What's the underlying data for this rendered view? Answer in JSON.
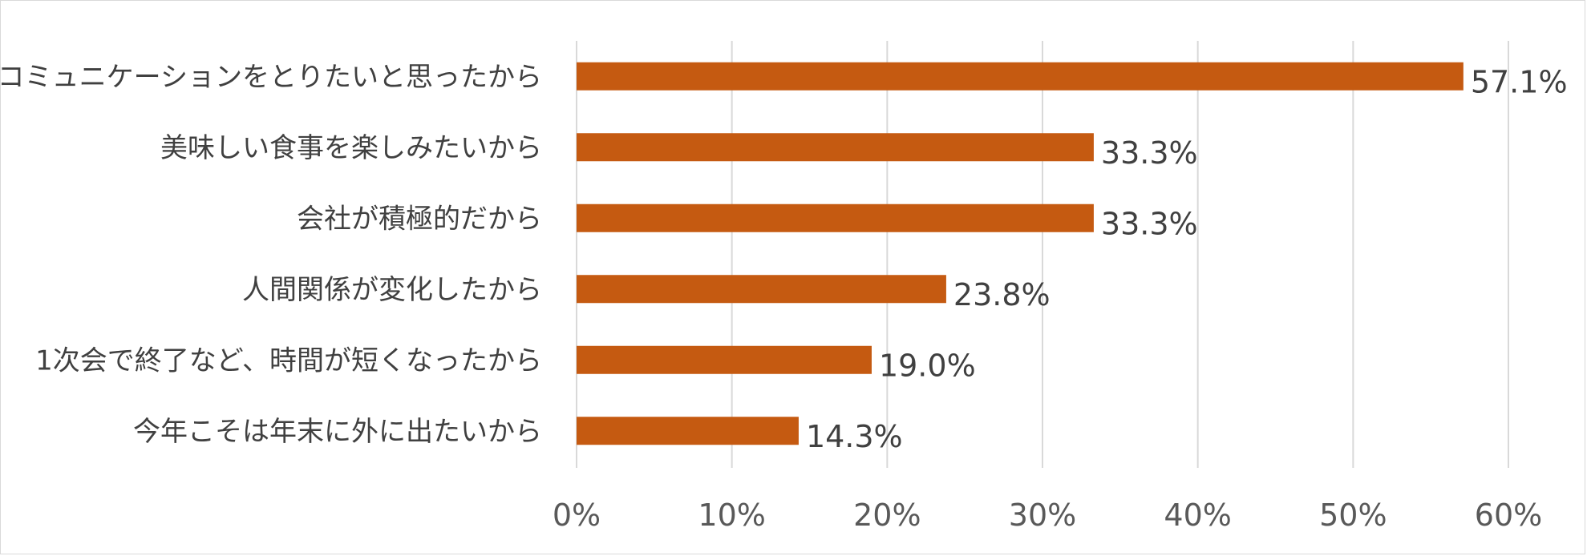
{
  "chart_data": {
    "type": "bar",
    "orientation": "horizontal",
    "categories": [
      "コミュニケーションをとりたいと思ったから",
      "美味しい食事を楽しみたいから",
      "会社が積極的だから",
      "人間関係が変化したから",
      "1次会で終了など、時間が短くなったから",
      "今年こそは年末に外に出たいから"
    ],
    "values": [
      57.1,
      33.3,
      33.3,
      23.8,
      19.0,
      14.3
    ],
    "data_labels": [
      "57.1%",
      "33.3%",
      "33.3%",
      "23.8%",
      "19.0%",
      "14.3%"
    ],
    "x_ticks": [
      0,
      10,
      20,
      30,
      40,
      50,
      60
    ],
    "x_tick_labels": [
      "0%",
      "10%",
      "20%",
      "30%",
      "40%",
      "50%",
      "60%"
    ],
    "xlim": [
      0,
      60
    ],
    "grid": true,
    "legend": "none",
    "title": "",
    "xlabel": "",
    "ylabel": "",
    "bar_color": "#C55A11"
  }
}
